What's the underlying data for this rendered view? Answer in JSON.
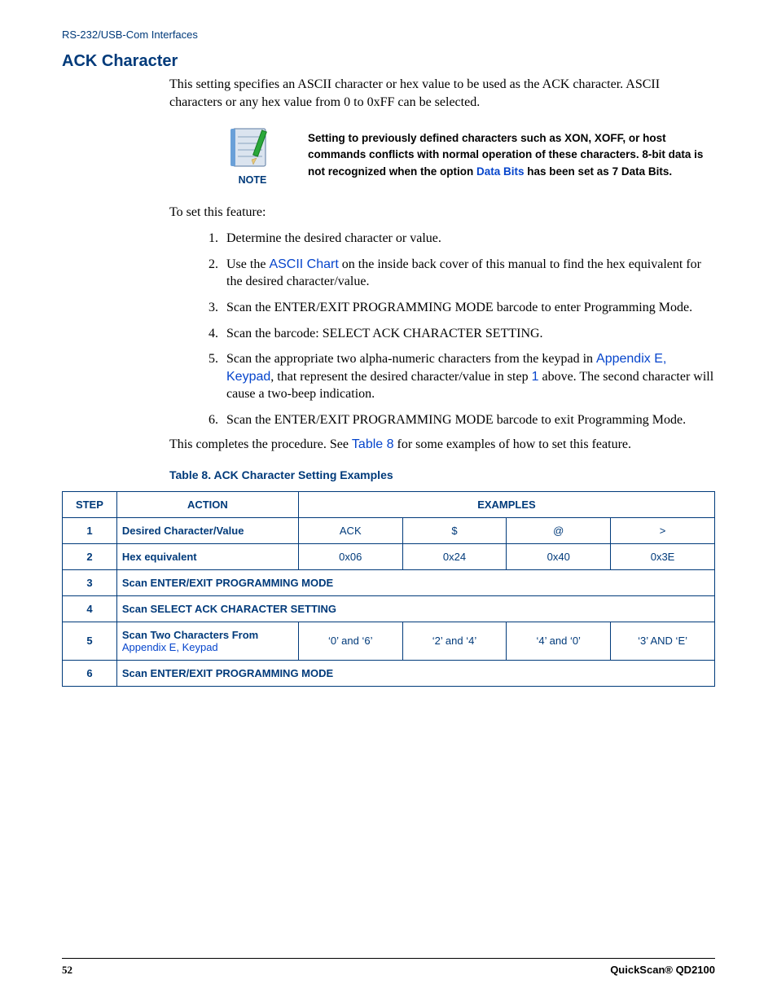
{
  "header": {
    "breadcrumb": "RS-232/USB-Com Interfaces"
  },
  "section": {
    "title": "ACK Character",
    "intro": "This setting specifies an ASCII character or hex value to be used as the ACK character. ASCII characters or any hex value from 0 to 0xFF can be selected."
  },
  "note": {
    "label": "NOTE",
    "text_before_link": "Setting to previously defined characters such as XON, XOFF, or host commands conflicts with normal operation of these characters. 8-bit data is not recognized when the option ",
    "link_text": "Data Bits",
    "text_after_link": " has been set as 7 Data Bits.",
    "link_color": "#0645cc",
    "icon_colors": {
      "paper": "#c9d6e6",
      "binding": "#6aa0d8",
      "pencil_body": "#2aa83a",
      "pencil_tip": "#e6c77a"
    }
  },
  "instructions": {
    "lead": "To set this feature:",
    "steps": [
      "Determine the desired character or value.",
      "Use the |ASCII Chart| on the inside back cover of this manual to find the hex equivalent for the desired character/value.",
      "Scan the ENTER/EXIT PROGRAMMING MODE barcode to enter Programming Mode.",
      "Scan the barcode: SELECT ACK CHARACTER SETTING.",
      "Scan the appropriate two alpha-numeric characters from the keypad in |Appendix E, Keypad|, that represent the desired character/value in step |1| above. The second character will cause a two-beep indication.",
      "Scan the ENTER/EXIT PROGRAMMING MODE barcode to exit Programming Mode."
    ],
    "completes_before": "This completes the procedure. See ",
    "completes_link": "Table 8",
    "completes_after": " for some examples of how to set this feature."
  },
  "table": {
    "caption": "Table 8. ACK Character Setting Examples",
    "columns": [
      "STEP",
      "ACTION",
      "EXAMPLES"
    ],
    "border_color": "#003a7a",
    "text_color": "#003a7a",
    "font_size": 13,
    "rows": [
      {
        "step": "1",
        "action": "Desired Character/Value",
        "examples": [
          "ACK",
          "$",
          "@",
          ">"
        ]
      },
      {
        "step": "2",
        "action": "Hex equivalent",
        "examples": [
          "0x06",
          "0x24",
          "0x40",
          "0x3E"
        ]
      },
      {
        "step": "3",
        "full": "Scan ENTER/EXIT PROGRAMMING MODE"
      },
      {
        "step": "4",
        "full": "Scan SELECT ACK CHARACTER SETTING"
      },
      {
        "step": "5",
        "action_prefix": "Scan Two Characters From ",
        "action_link": "Appendix E, Keypad",
        "examples": [
          "'0' and '6'",
          "'2' and '4'",
          "'4' and '0'",
          "'3' AND 'E'"
        ]
      },
      {
        "step": "6",
        "full": "Scan ENTER/EXIT PROGRAMMING MODE"
      }
    ]
  },
  "footer": {
    "page_number": "52",
    "product": "QuickScan® QD2100"
  },
  "colors": {
    "heading_blue": "#003a7a",
    "link_blue": "#0645cc",
    "body_text": "#000000",
    "background": "#ffffff"
  }
}
